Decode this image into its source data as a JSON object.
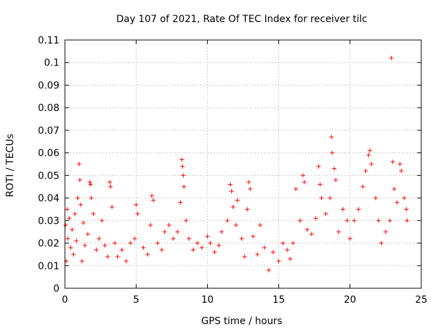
{
  "chart_data": {
    "type": "scatter",
    "title": "Day 107 of 2021, Rate Of TEC Index for receiver tilc",
    "xlabel": "GPS time / hours",
    "ylabel": "ROTI / TECUs",
    "xlim": [
      0,
      25
    ],
    "ylim": [
      0,
      0.11
    ],
    "x_ticks": [
      "0",
      "5",
      "10",
      "15",
      "20",
      "25"
    ],
    "y_ticks": [
      "0",
      "0.01",
      "0.02",
      "0.03",
      "0.04",
      "0.05",
      "0.06",
      "0.07",
      "0.08",
      "0.09",
      "0.1",
      "0.11"
    ],
    "grid": true,
    "marker": "+",
    "color": "#ff0000",
    "series": [
      {
        "points": [
          [
            0.05,
            0.028
          ],
          [
            0.1,
            0.012
          ],
          [
            0.15,
            0.035
          ],
          [
            0.2,
            0.022
          ],
          [
            0.3,
            0.031
          ],
          [
            0.4,
            0.018
          ],
          [
            0.5,
            0.026
          ],
          [
            0.6,
            0.015
          ],
          [
            0.7,
            0.033
          ],
          [
            0.8,
            0.021
          ],
          [
            0.9,
            0.04
          ],
          [
            1.0,
            0.055
          ],
          [
            1.05,
            0.048
          ],
          [
            1.1,
            0.037
          ],
          [
            1.2,
            0.012
          ],
          [
            1.3,
            0.029
          ],
          [
            1.4,
            0.019
          ],
          [
            1.6,
            0.024
          ],
          [
            1.75,
            0.047
          ],
          [
            1.8,
            0.046
          ],
          [
            1.85,
            0.04
          ],
          [
            2.0,
            0.033
          ],
          [
            2.2,
            0.017
          ],
          [
            2.4,
            0.022
          ],
          [
            2.6,
            0.03
          ],
          [
            2.8,
            0.019
          ],
          [
            3.0,
            0.014
          ],
          [
            3.15,
            0.047
          ],
          [
            3.2,
            0.045
          ],
          [
            3.3,
            0.036
          ],
          [
            3.5,
            0.02
          ],
          [
            3.7,
            0.014
          ],
          [
            4.0,
            0.017
          ],
          [
            4.3,
            0.012
          ],
          [
            4.6,
            0.02
          ],
          [
            4.9,
            0.022
          ],
          [
            5.0,
            0.037
          ],
          [
            5.1,
            0.033
          ],
          [
            5.5,
            0.018
          ],
          [
            5.8,
            0.015
          ],
          [
            6.0,
            0.028
          ],
          [
            6.1,
            0.041
          ],
          [
            6.2,
            0.039
          ],
          [
            6.5,
            0.02
          ],
          [
            6.8,
            0.017
          ],
          [
            7.0,
            0.025
          ],
          [
            7.3,
            0.028
          ],
          [
            7.6,
            0.022
          ],
          [
            7.9,
            0.025
          ],
          [
            8.1,
            0.038
          ],
          [
            8.2,
            0.057
          ],
          [
            8.25,
            0.054
          ],
          [
            8.3,
            0.05
          ],
          [
            8.35,
            0.045
          ],
          [
            8.5,
            0.03
          ],
          [
            8.7,
            0.022
          ],
          [
            9.0,
            0.017
          ],
          [
            9.3,
            0.02
          ],
          [
            9.6,
            0.018
          ],
          [
            10.0,
            0.023
          ],
          [
            10.2,
            0.02
          ],
          [
            10.5,
            0.016
          ],
          [
            10.8,
            0.019
          ],
          [
            11.0,
            0.025
          ],
          [
            11.4,
            0.03
          ],
          [
            11.6,
            0.046
          ],
          [
            11.7,
            0.043
          ],
          [
            11.8,
            0.036
          ],
          [
            12.0,
            0.028
          ],
          [
            12.1,
            0.039
          ],
          [
            12.4,
            0.022
          ],
          [
            12.6,
            0.014
          ],
          [
            12.8,
            0.035
          ],
          [
            12.9,
            0.047
          ],
          [
            13.0,
            0.044
          ],
          [
            13.2,
            0.023
          ],
          [
            13.5,
            0.015
          ],
          [
            13.7,
            0.028
          ],
          [
            14.0,
            0.018
          ],
          [
            14.3,
            0.008
          ],
          [
            14.6,
            0.016
          ],
          [
            15.0,
            0.012
          ],
          [
            15.3,
            0.02
          ],
          [
            15.6,
            0.017
          ],
          [
            15.8,
            0.013
          ],
          [
            16.0,
            0.02
          ],
          [
            16.2,
            0.044
          ],
          [
            16.5,
            0.03
          ],
          [
            16.7,
            0.05
          ],
          [
            16.8,
            0.047
          ],
          [
            17.0,
            0.026
          ],
          [
            17.3,
            0.024
          ],
          [
            17.6,
            0.031
          ],
          [
            17.8,
            0.054
          ],
          [
            17.9,
            0.046
          ],
          [
            18.0,
            0.04
          ],
          [
            18.3,
            0.033
          ],
          [
            18.6,
            0.04
          ],
          [
            18.7,
            0.067
          ],
          [
            18.75,
            0.06
          ],
          [
            18.9,
            0.053
          ],
          [
            19.0,
            0.048
          ],
          [
            19.2,
            0.025
          ],
          [
            19.5,
            0.035
          ],
          [
            19.8,
            0.03
          ],
          [
            20.0,
            0.022
          ],
          [
            20.3,
            0.03
          ],
          [
            20.6,
            0.035
          ],
          [
            20.9,
            0.045
          ],
          [
            21.1,
            0.052
          ],
          [
            21.3,
            0.059
          ],
          [
            21.4,
            0.061
          ],
          [
            21.5,
            0.055
          ],
          [
            21.8,
            0.04
          ],
          [
            22.0,
            0.03
          ],
          [
            22.2,
            0.02
          ],
          [
            22.5,
            0.025
          ],
          [
            22.8,
            0.03
          ],
          [
            22.9,
            0.102
          ],
          [
            23.0,
            0.056
          ],
          [
            23.1,
            0.044
          ],
          [
            23.3,
            0.038
          ],
          [
            23.5,
            0.055
          ],
          [
            23.6,
            0.052
          ],
          [
            23.8,
            0.04
          ],
          [
            23.95,
            0.035
          ],
          [
            24.0,
            0.03
          ]
        ]
      }
    ]
  }
}
